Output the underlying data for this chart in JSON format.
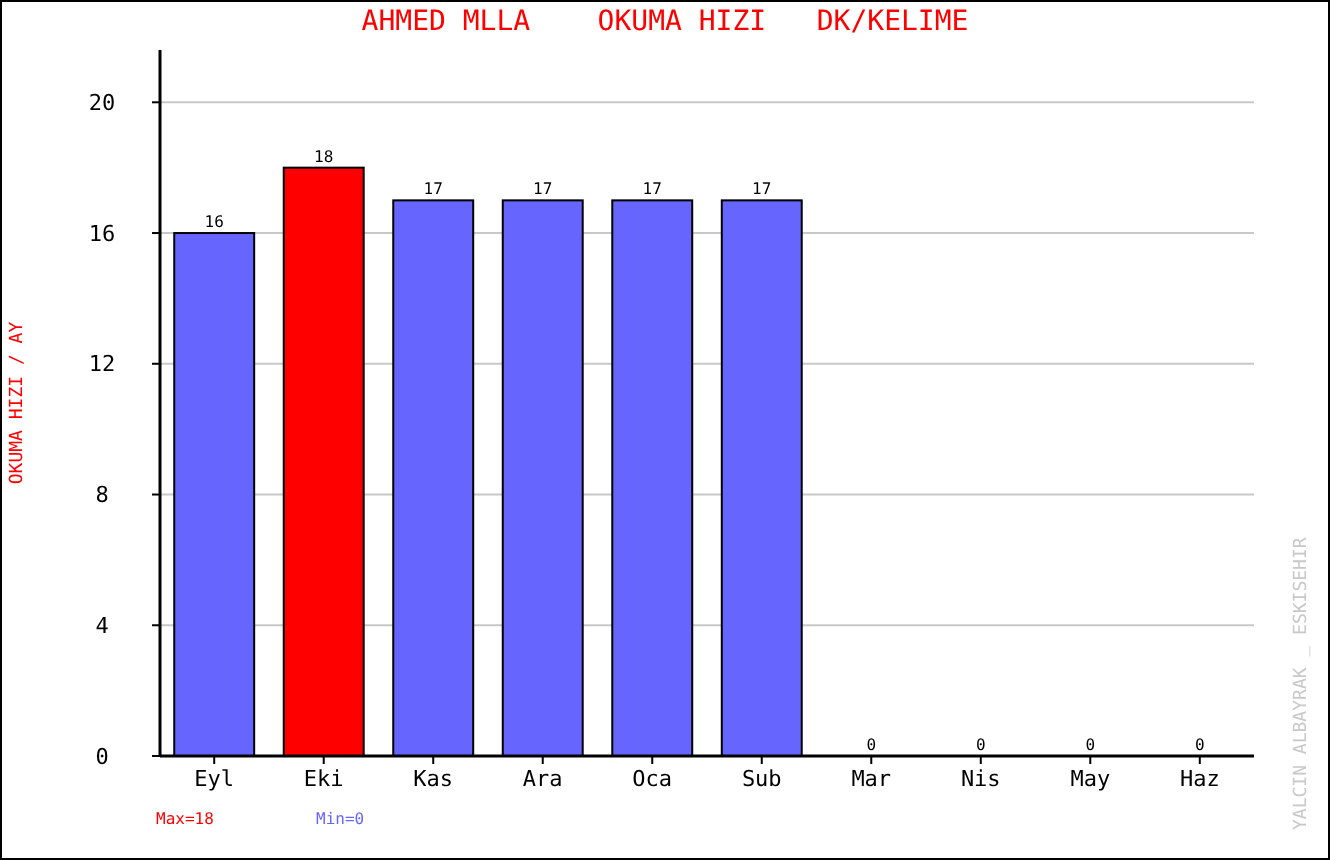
{
  "chart_data": {
    "type": "bar",
    "title": "AHMED MLLA    OKUMA HIZI   DK/KELIME",
    "ylabel": "OKUMA HIZI / AY",
    "categories": [
      "Eyl",
      "Eki",
      "Kas",
      "Ara",
      "Oca",
      "Sub",
      "Mar",
      "Nis",
      "May",
      "Haz"
    ],
    "values": [
      16,
      18,
      17,
      17,
      17,
      17,
      0,
      0,
      0,
      0
    ],
    "colors": [
      "#6666ff",
      "#ff0000",
      "#6666ff",
      "#6666ff",
      "#6666ff",
      "#6666ff",
      "#6666ff",
      "#6666ff",
      "#6666ff",
      "#6666ff"
    ],
    "ylim": [
      0,
      21.6
    ],
    "yticks": [
      0,
      4,
      8,
      12,
      16,
      20
    ],
    "grid": "y",
    "data_labels": true,
    "annotations": [
      "Max=18",
      "Min=0",
      "YALCIN ALBAYRAK _ ESKISEHIR"
    ]
  }
}
